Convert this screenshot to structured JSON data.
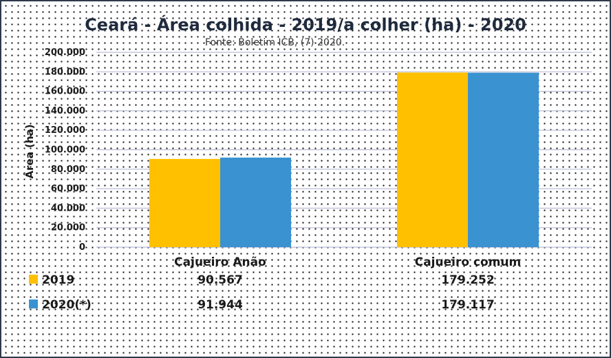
{
  "chart_data": {
    "type": "bar",
    "title": "Ceará - Área colhida - 2019/a colher (ha) - 2020",
    "subtitle": "Fonte: Boletim ICB, (7) 2020.",
    "ylabel": "Área (ha)",
    "xlabel": "",
    "categories": [
      "Cajueiro Anão",
      "Cajueiro comum"
    ],
    "series": [
      {
        "name": "2019",
        "values": [
          90567,
          179252
        ],
        "labels": [
          "90.567",
          "179.252"
        ],
        "color": "#FFC000"
      },
      {
        "name": "2020(*)",
        "values": [
          91944,
          179117
        ],
        "labels": [
          "91.944",
          "179.117"
        ],
        "color": "#3A92D0"
      }
    ],
    "ylim": [
      0,
      200000
    ],
    "yticks": [
      0,
      20000,
      40000,
      60000,
      80000,
      100000,
      120000,
      140000,
      160000,
      180000,
      200000
    ],
    "ytick_labels": [
      "0",
      "20.000",
      "40.000",
      "60.000",
      "80.000",
      "100.000",
      "120.000",
      "140.000",
      "160.000",
      "180.000",
      "200.000"
    ],
    "grid": true,
    "legend": "data-table-bottom"
  }
}
